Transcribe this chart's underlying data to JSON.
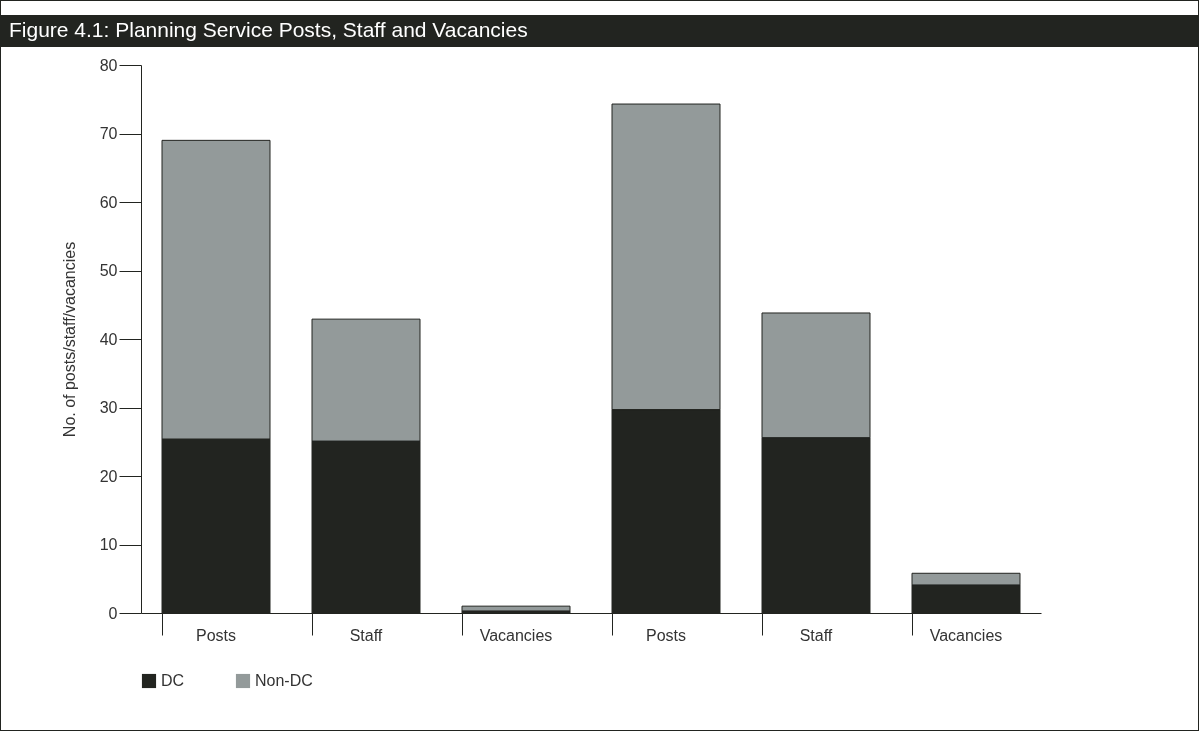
{
  "chart_data": {
    "type": "bar",
    "title": "Figure 4.1: Planning Service Posts, Staff and Vacancies",
    "ylabel": "No. of posts/staff/vacancies",
    "categories": [
      "Posts",
      "Staff",
      "Vacancies",
      "Posts",
      "Staff",
      "Vacancies"
    ],
    "series": [
      {
        "name": "DC",
        "color": "#222420",
        "values": [
          25.4,
          25.1,
          0.3,
          29.7,
          25.6,
          4.1
        ]
      },
      {
        "name": "Non-DC",
        "color": "#939a9a",
        "values": [
          43.6,
          17.8,
          0.7,
          44.6,
          18.2,
          1.7
        ]
      }
    ],
    "stacked": true,
    "ylim": [
      0,
      80
    ],
    "yticks": [
      0,
      10,
      20,
      30,
      40,
      50,
      60,
      70,
      80
    ],
    "grid": false,
    "legend": "bottom"
  }
}
